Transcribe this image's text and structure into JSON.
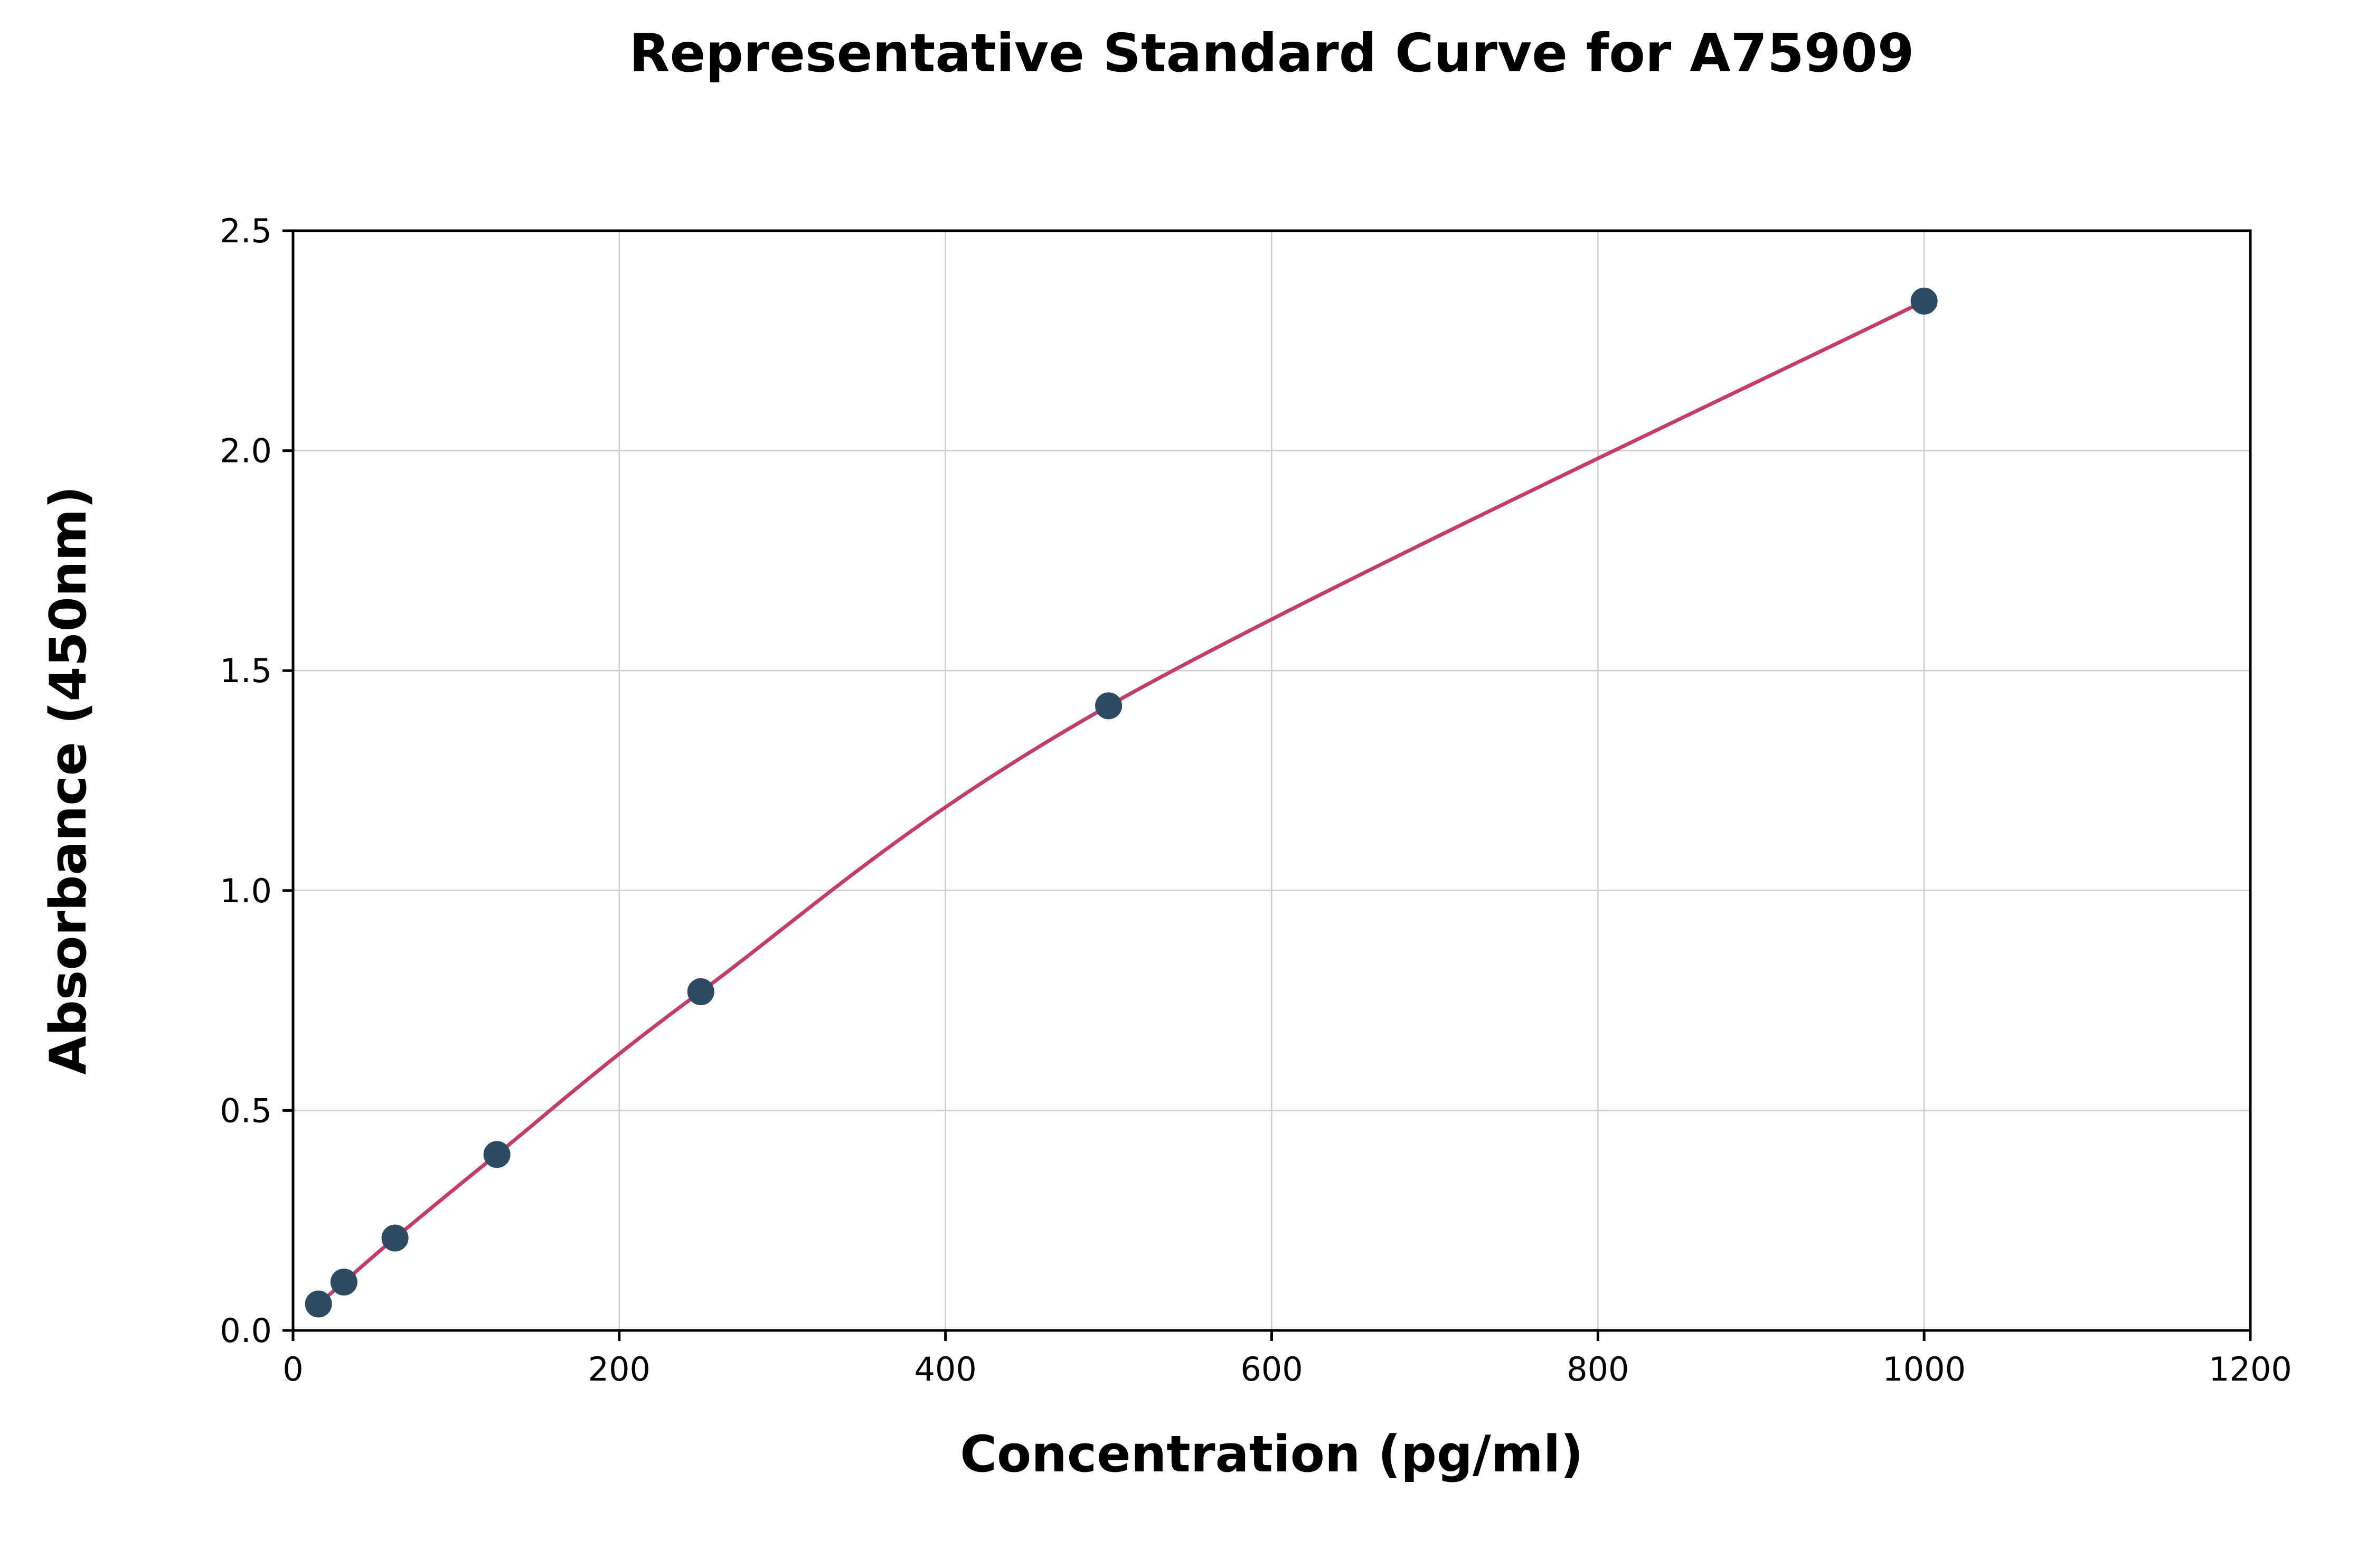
{
  "chart_data": {
    "type": "scatter",
    "title": "Representative Standard Curve for A75909",
    "xlabel": "Concentration (pg/ml)",
    "ylabel": "Absorbance (450nm)",
    "xlim": [
      0,
      1200
    ],
    "ylim": [
      0,
      2.5
    ],
    "x_ticks": [
      0,
      200,
      400,
      600,
      800,
      1000,
      1200
    ],
    "x_tick_labels": [
      "0",
      "200",
      "400",
      "600",
      "800",
      "1000",
      "1200"
    ],
    "y_ticks": [
      0.0,
      0.5,
      1.0,
      1.5,
      2.0,
      2.5
    ],
    "y_tick_labels": [
      "0.0",
      "0.5",
      "1.0",
      "1.5",
      "2.0",
      "2.5"
    ],
    "grid": true,
    "legend": "none",
    "points": [
      {
        "x": 15.6,
        "y": 0.06
      },
      {
        "x": 31.2,
        "y": 0.11
      },
      {
        "x": 62.5,
        "y": 0.21
      },
      {
        "x": 125,
        "y": 0.4
      },
      {
        "x": 250,
        "y": 0.77
      },
      {
        "x": 500,
        "y": 1.42
      },
      {
        "x": 1000,
        "y": 2.34
      }
    ],
    "colors": {
      "curve": "#c33d6b",
      "points": "#2f4b63",
      "grid": "#cccccc",
      "axis": "#000000",
      "background": "#ffffff"
    }
  }
}
